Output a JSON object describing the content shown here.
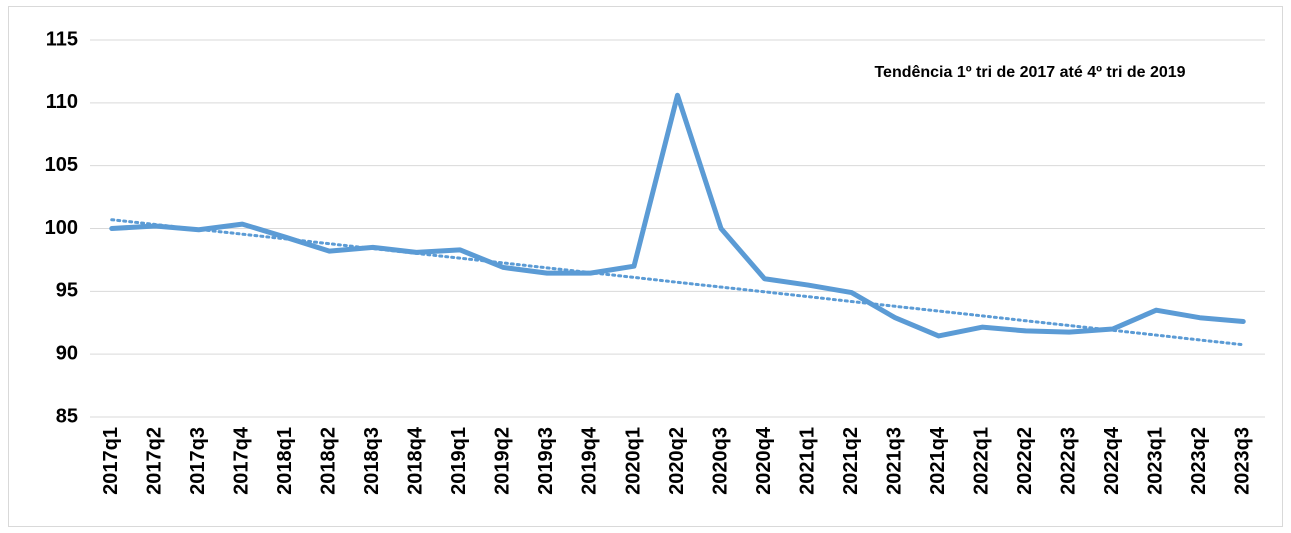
{
  "chart_data": {
    "type": "line",
    "annotation": "Tendência 1º tri de 2017 até 4º tri de 2019",
    "categories": [
      "2017q1",
      "2017q2",
      "2017q3",
      "2017q4",
      "2018q1",
      "2018q2",
      "2018q3",
      "2018q4",
      "2019q1",
      "2019q2",
      "2019q3",
      "2019q4",
      "2020q1",
      "2020q2",
      "2020q3",
      "2020q4",
      "2021q1",
      "2021q2",
      "2021q3",
      "2021q4",
      "2022q1",
      "2022q2",
      "2022q3",
      "2022q4",
      "2023q1",
      "2023q2",
      "2023q3"
    ],
    "series": [
      {
        "color": "#5b9bd5",
        "style": "solid",
        "values": [
          100.0,
          100.2,
          99.9,
          100.35,
          99.3,
          98.2,
          98.5,
          98.1,
          98.3,
          96.9,
          96.45,
          96.45,
          97.0,
          110.6,
          100.0,
          96.0,
          95.5,
          94.9,
          92.9,
          91.45,
          92.15,
          91.85,
          91.75,
          92.0,
          93.5,
          92.9,
          92.6
        ]
      },
      {
        "color": "#5b9bd5",
        "style": "dotted",
        "values": [
          100.7,
          100.32,
          99.93,
          99.55,
          99.17,
          98.79,
          98.4,
          98.02,
          97.64,
          97.26,
          96.87,
          96.49,
          96.11,
          95.72,
          95.34,
          94.96,
          94.58,
          94.19,
          93.81,
          93.43,
          93.05,
          92.66,
          92.28,
          91.9,
          91.52,
          91.13,
          90.75
        ]
      }
    ],
    "ylim": [
      85,
      115
    ],
    "yticks": [
      85,
      90,
      95,
      100,
      105,
      110,
      115
    ],
    "grid": true
  }
}
